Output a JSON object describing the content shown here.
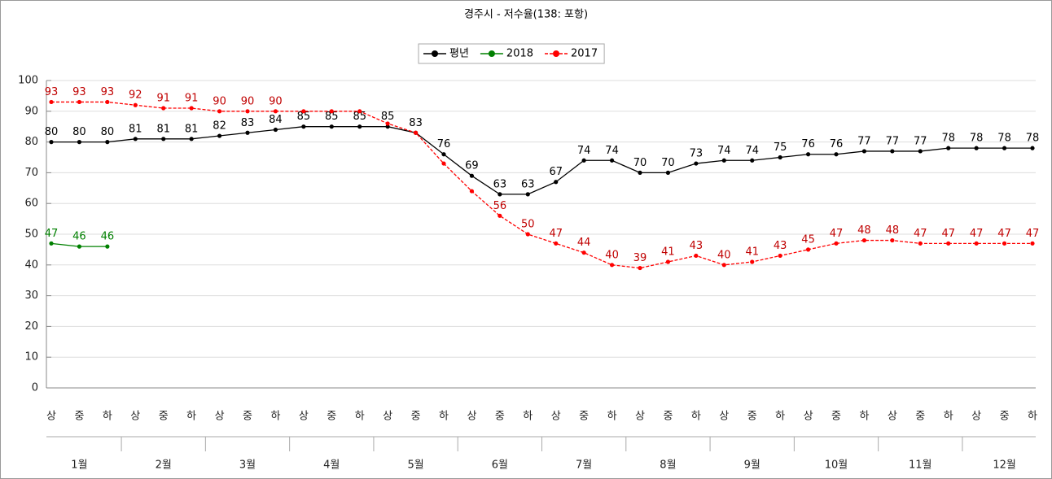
{
  "chart_data": {
    "type": "line",
    "title": "경주시 - 저수율(138: 포항)",
    "categories": [
      "상",
      "중",
      "하",
      "상",
      "중",
      "하",
      "상",
      "중",
      "하",
      "상",
      "중",
      "하",
      "상",
      "중",
      "하",
      "상",
      "중",
      "하",
      "상",
      "중",
      "하",
      "상",
      "중",
      "하",
      "상",
      "중",
      "하",
      "상",
      "중",
      "하",
      "상",
      "중",
      "하",
      "상",
      "중",
      "하"
    ],
    "groups": [
      "1월",
      "2월",
      "3월",
      "4월",
      "5월",
      "6월",
      "7월",
      "8월",
      "9월",
      "10월",
      "11월",
      "12월"
    ],
    "series": [
      {
        "name": "평년",
        "color": "#000000",
        "dashed": false,
        "values": [
          80,
          80,
          80,
          81,
          81,
          81,
          82,
          83,
          84,
          85,
          85,
          85,
          85,
          83,
          76,
          69,
          63,
          63,
          67,
          74,
          74,
          70,
          70,
          73,
          74,
          74,
          75,
          76,
          76,
          77,
          77,
          77,
          78,
          78,
          78,
          78
        ],
        "value_labels": [
          "80",
          "80",
          "80",
          "81",
          "81",
          "81",
          "82",
          "83",
          "84",
          "85",
          "85",
          "85",
          "85",
          "83",
          "76",
          "69",
          "63",
          "63",
          "67",
          "74",
          "74",
          "70",
          "70",
          "73",
          "74",
          "74",
          "75",
          "76",
          "76",
          "77",
          "77",
          "77",
          "78",
          "78",
          "78",
          "78"
        ]
      },
      {
        "name": "2018",
        "color": "#008000",
        "dashed": false,
        "values": [
          47,
          46,
          46,
          null,
          null,
          null,
          null,
          null,
          null,
          null,
          null,
          null,
          null,
          null,
          null,
          null,
          null,
          null,
          null,
          null,
          null,
          null,
          null,
          null,
          null,
          null,
          null,
          null,
          null,
          null,
          null,
          null,
          null,
          null,
          null,
          null
        ],
        "value_labels": [
          "47",
          "46",
          "46",
          null,
          null,
          null,
          null,
          null,
          null,
          null,
          null,
          null,
          null,
          null,
          null,
          null,
          null,
          null,
          null,
          null,
          null,
          null,
          null,
          null,
          null,
          null,
          null,
          null,
          null,
          null,
          null,
          null,
          null,
          null,
          null,
          null
        ]
      },
      {
        "name": "2017",
        "color": "#ff0000",
        "dashed": true,
        "values": [
          93,
          93,
          93,
          92,
          91,
          91,
          90,
          90,
          90,
          90,
          90,
          90,
          86,
          83,
          73,
          64,
          56,
          50,
          47,
          44,
          40,
          39,
          41,
          43,
          40,
          41,
          43,
          45,
          47,
          48,
          48,
          47,
          47,
          47,
          47,
          47
        ],
        "value_labels": [
          "93",
          "93",
          "93",
          "92",
          "91",
          "91",
          "90",
          "90",
          "90",
          null,
          null,
          null,
          null,
          null,
          null,
          null,
          "56",
          "50",
          "47",
          "44",
          "40",
          "39",
          "41",
          "43",
          "40",
          "41",
          "43",
          "45",
          "47",
          "48",
          "48",
          "47",
          "47",
          "47",
          "47",
          "47"
        ]
      }
    ],
    "ylim": [
      0,
      100
    ],
    "yticks": [
      0,
      10,
      20,
      30,
      40,
      50,
      60,
      70,
      80,
      90,
      100
    ],
    "grid": true
  }
}
